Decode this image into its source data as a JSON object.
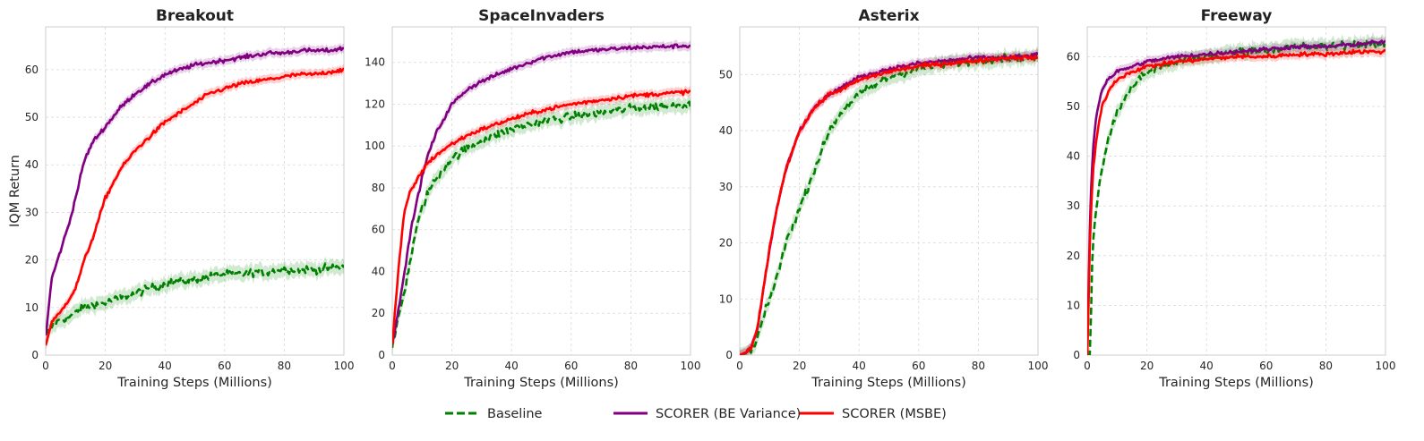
{
  "legend": [
    {
      "label": "Baseline",
      "color": "#008000",
      "dash": true
    },
    {
      "label": "SCORER (BE Variance)",
      "color": "#800080",
      "dash": false
    },
    {
      "label": "SCORER (MSBE)",
      "color": "#ff0000",
      "dash": false
    }
  ],
  "chart_data": [
    {
      "type": "line",
      "title": "Breakout",
      "xlabel": "Training Steps (Millions)",
      "ylabel": "IQM Return",
      "xlim": [
        0,
        100
      ],
      "ylim": [
        0,
        69
      ],
      "xticks": [
        0,
        20,
        40,
        60,
        80,
        100
      ],
      "yticks": [
        0,
        10,
        20,
        30,
        40,
        50,
        60
      ],
      "grid": true,
      "series": [
        {
          "name": "Baseline",
          "color": "#008000",
          "dash": true,
          "x": [
            0,
            2,
            5,
            8,
            10,
            12,
            15,
            20,
            25,
            30,
            35,
            40,
            45,
            50,
            55,
            60,
            65,
            70,
            75,
            80,
            85,
            90,
            95,
            100
          ],
          "y": [
            4,
            6,
            7.5,
            8,
            9,
            10,
            10.5,
            11,
            12,
            13,
            14,
            15,
            15.5,
            16,
            16.5,
            17,
            17,
            17.5,
            17.5,
            18,
            18,
            18,
            18.3,
            18.5
          ]
        },
        {
          "name": "SCORER (BE Variance)",
          "color": "#800080",
          "dash": false,
          "x": [
            0,
            2,
            5,
            8,
            10,
            13,
            16,
            20,
            25,
            30,
            35,
            40,
            45,
            50,
            55,
            60,
            65,
            70,
            75,
            80,
            85,
            90,
            95,
            100
          ],
          "y": [
            4,
            16,
            22,
            28,
            33,
            41,
            45,
            48,
            52,
            55,
            57,
            59,
            60,
            61,
            61.5,
            62,
            62.5,
            63,
            63.5,
            63.5,
            64,
            64,
            64,
            64.5
          ]
        },
        {
          "name": "SCORER (MSBE)",
          "color": "#ff0000",
          "dash": false,
          "x": [
            0,
            2,
            5,
            8,
            10,
            13,
            16,
            20,
            25,
            30,
            35,
            40,
            45,
            50,
            55,
            60,
            65,
            70,
            75,
            80,
            85,
            90,
            95,
            100
          ],
          "y": [
            2,
            7,
            9,
            12,
            14,
            20,
            25,
            33,
            39,
            43,
            46,
            49,
            51,
            53,
            55,
            56,
            57,
            57.5,
            58,
            58.5,
            59,
            59,
            59.5,
            60
          ]
        }
      ]
    },
    {
      "type": "line",
      "title": "SpaceInvaders",
      "xlabel": "Training Steps (Millions)",
      "ylabel": "",
      "xlim": [
        0,
        100
      ],
      "ylim": [
        0,
        157
      ],
      "xticks": [
        0,
        20,
        40,
        60,
        80,
        100
      ],
      "yticks": [
        0,
        20,
        40,
        60,
        80,
        100,
        120,
        140
      ],
      "grid": true,
      "series": [
        {
          "name": "Baseline",
          "color": "#008000",
          "dash": true,
          "x": [
            0,
            2,
            4,
            6,
            8,
            10,
            12,
            15,
            20,
            25,
            30,
            40,
            50,
            60,
            70,
            80,
            90,
            100
          ],
          "y": [
            3,
            18,
            30,
            45,
            60,
            70,
            78,
            85,
            94,
            99,
            103,
            108,
            112,
            114,
            116,
            118,
            119,
            120
          ]
        },
        {
          "name": "SCORER (BE Variance)",
          "color": "#800080",
          "dash": false,
          "x": [
            0,
            2,
            4,
            6,
            8,
            10,
            12,
            15,
            20,
            25,
            30,
            40,
            50,
            60,
            70,
            80,
            90,
            100
          ],
          "y": [
            5,
            22,
            38,
            58,
            72,
            85,
            96,
            107,
            120,
            127,
            131,
            137,
            142,
            145,
            146,
            147,
            147.5,
            148
          ]
        },
        {
          "name": "SCORER (MSBE)",
          "color": "#ff0000",
          "dash": false,
          "x": [
            0,
            2,
            4,
            6,
            8,
            10,
            12,
            15,
            20,
            25,
            30,
            40,
            50,
            60,
            70,
            80,
            90,
            100
          ],
          "y": [
            5,
            40,
            68,
            78,
            83,
            88,
            92,
            96,
            101,
            105,
            108,
            113,
            117,
            120,
            122,
            124,
            125,
            126
          ]
        }
      ]
    },
    {
      "type": "line",
      "title": "Asterix",
      "xlabel": "Training Steps (Millions)",
      "ylabel": "",
      "xlim": [
        0,
        100
      ],
      "ylim": [
        0,
        58.5
      ],
      "xticks": [
        0,
        20,
        40,
        60,
        80,
        100
      ],
      "yticks": [
        0,
        10,
        20,
        30,
        40,
        50
      ],
      "grid": true,
      "series": [
        {
          "name": "Baseline",
          "color": "#008000",
          "dash": true,
          "x": [
            0,
            3,
            5,
            7,
            10,
            13,
            16,
            20,
            25,
            30,
            35,
            40,
            45,
            50,
            60,
            70,
            80,
            90,
            100
          ],
          "y": [
            0,
            0.5,
            1.5,
            5,
            10,
            15,
            21,
            26,
            33,
            40,
            44,
            46.5,
            48,
            49.5,
            51,
            52,
            52.5,
            53,
            53
          ]
        },
        {
          "name": "SCORER (BE Variance)",
          "color": "#800080",
          "dash": false,
          "x": [
            0,
            2,
            4,
            6,
            8,
            10,
            12,
            14,
            16,
            18,
            20,
            25,
            30,
            35,
            40,
            50,
            60,
            70,
            80,
            90,
            100
          ],
          "y": [
            0,
            0.5,
            1.5,
            5,
            12,
            19,
            25,
            30,
            34,
            37,
            40,
            44,
            46.5,
            48,
            49.5,
            51,
            52,
            52.5,
            53,
            53,
            53.5
          ]
        },
        {
          "name": "SCORER (MSBE)",
          "color": "#ff0000",
          "dash": false,
          "x": [
            0,
            2,
            4,
            6,
            8,
            10,
            12,
            14,
            16,
            18,
            20,
            25,
            30,
            35,
            40,
            50,
            60,
            70,
            80,
            90,
            100
          ],
          "y": [
            0,
            0.5,
            1.5,
            5,
            12,
            19,
            25,
            30,
            34,
            37,
            40,
            44,
            46.5,
            47.5,
            49,
            50.5,
            51.5,
            52,
            52.5,
            53,
            53
          ]
        }
      ]
    },
    {
      "type": "line",
      "title": "Freeway",
      "xlabel": "Training Steps (Millions)",
      "ylabel": "",
      "xlim": [
        0,
        100
      ],
      "ylim": [
        0,
        66
      ],
      "xticks": [
        0,
        20,
        40,
        60,
        80,
        100
      ],
      "yticks": [
        0,
        10,
        20,
        30,
        40,
        50,
        60
      ],
      "grid": true,
      "series": [
        {
          "name": "Baseline",
          "color": "#008000",
          "dash": true,
          "x": [
            0,
            1,
            1.5,
            2,
            3,
            4,
            5,
            7,
            10,
            15,
            20,
            30,
            40,
            50,
            60,
            70,
            80,
            90,
            100
          ],
          "y": [
            0,
            0,
            15,
            24,
            29,
            34,
            38,
            43,
            49,
            54,
            57,
            59,
            60,
            61,
            61.5,
            62,
            62,
            62.5,
            62.5
          ]
        },
        {
          "name": "SCORER (BE Variance)",
          "color": "#800080",
          "dash": false,
          "x": [
            0,
            0.5,
            1,
            2,
            3,
            4,
            5,
            7,
            10,
            15,
            20,
            30,
            40,
            50,
            60,
            70,
            80,
            90,
            100
          ],
          "y": [
            0,
            15,
            30,
            42,
            48,
            51,
            53.5,
            55.5,
            57,
            58,
            59,
            60,
            60.5,
            61,
            61.5,
            62,
            62,
            62.5,
            63
          ]
        },
        {
          "name": "SCORER (MSBE)",
          "color": "#ff0000",
          "dash": false,
          "x": [
            0,
            0.5,
            1,
            2,
            3,
            4,
            5,
            7,
            10,
            15,
            20,
            30,
            40,
            50,
            60,
            70,
            80,
            90,
            100
          ],
          "y": [
            0,
            12,
            26,
            37,
            43,
            47,
            50,
            53,
            55.5,
            57,
            58,
            59,
            59.5,
            60,
            60,
            60.5,
            60.5,
            61,
            61
          ]
        }
      ]
    }
  ]
}
